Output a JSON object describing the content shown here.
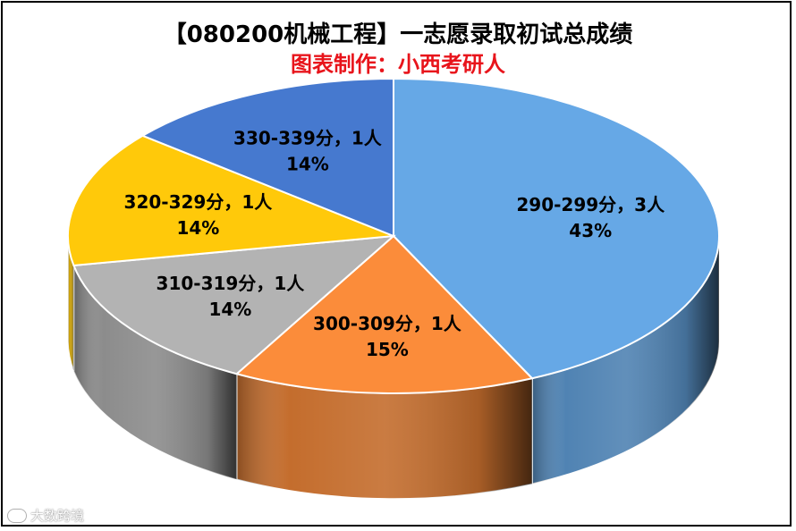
{
  "colors": {
    "subtitle": "#e8141b"
  },
  "chart_data": {
    "type": "pie",
    "title": "【080200机械工程】一志愿录取初试总成绩",
    "subtitle": "图表制作：小西考研人",
    "slices": [
      {
        "category": "290-299分",
        "count_label": "3人",
        "value": 43,
        "percent": "43%",
        "color": "#66a8e6"
      },
      {
        "category": "300-309分",
        "count_label": "1人",
        "value": 15,
        "percent": "15%",
        "color": "#fb8c3a"
      },
      {
        "category": "310-319分",
        "count_label": "1人",
        "value": 14,
        "percent": "14%",
        "color": "#b3b3b3"
      },
      {
        "category": "320-329分",
        "count_label": "1人",
        "value": 14,
        "percent": "14%",
        "color": "#ffc90a"
      },
      {
        "category": "330-339分",
        "count_label": "1人",
        "value": 14,
        "percent": "14%",
        "color": "#4679cf"
      }
    ],
    "legend": "none"
  },
  "watermark": {
    "text": "大数跨境"
  }
}
